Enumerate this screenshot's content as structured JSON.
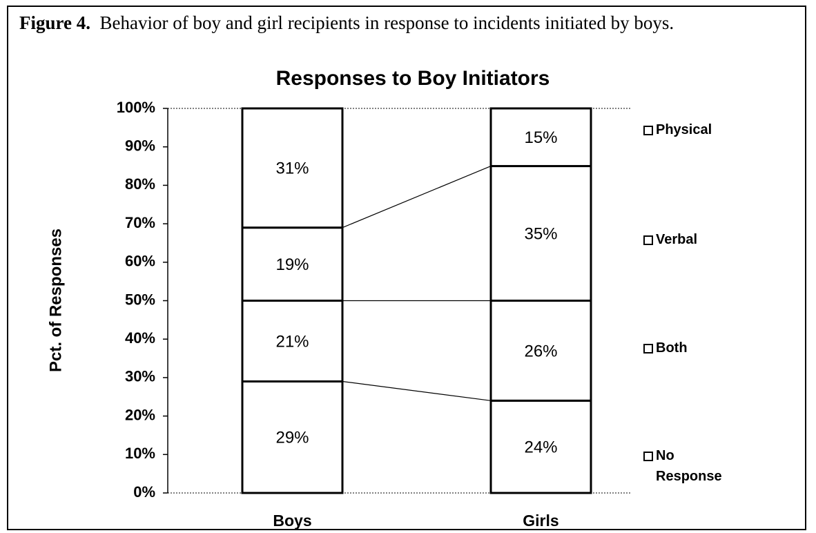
{
  "chart_data": {
    "type": "stacked_bar",
    "caption_label": "Figure 4.",
    "caption": "Behavior of boy and girl recipients in response to incidents initiated by boys.",
    "title": "Responses to Boy Initiators",
    "y_label": "Pct. of Responses",
    "categories": [
      "Boys",
      "Girls"
    ],
    "series": [
      {
        "name": "No Response",
        "color": "#ffffff",
        "values": [
          29,
          24
        ],
        "value_labels": [
          "29%",
          "24%"
        ]
      },
      {
        "name": "Both",
        "color": "#ffffff",
        "values": [
          21,
          26
        ],
        "value_labels": [
          "21%",
          "26%"
        ]
      },
      {
        "name": "Verbal",
        "color": "#ffffff",
        "values": [
          19,
          35
        ],
        "value_labels": [
          "19%",
          "35%"
        ]
      },
      {
        "name": "Physical",
        "color": "#ffffff",
        "values": [
          31,
          15
        ],
        "value_labels": [
          "31%",
          "15%"
        ]
      }
    ],
    "ylim": [
      0,
      100
    ],
    "yticks": [
      {
        "value": 0,
        "label": "0%"
      },
      {
        "value": 10,
        "label": "10%"
      },
      {
        "value": 20,
        "label": "20%"
      },
      {
        "value": 30,
        "label": "30%"
      },
      {
        "value": 40,
        "label": "40%"
      },
      {
        "value": 50,
        "label": "50%"
      },
      {
        "value": 60,
        "label": "60%"
      },
      {
        "value": 70,
        "label": "70%"
      },
      {
        "value": 80,
        "label": "80%"
      },
      {
        "value": 90,
        "label": "90%"
      },
      {
        "value": 100,
        "label": "100%"
      }
    ],
    "legend": "right"
  }
}
